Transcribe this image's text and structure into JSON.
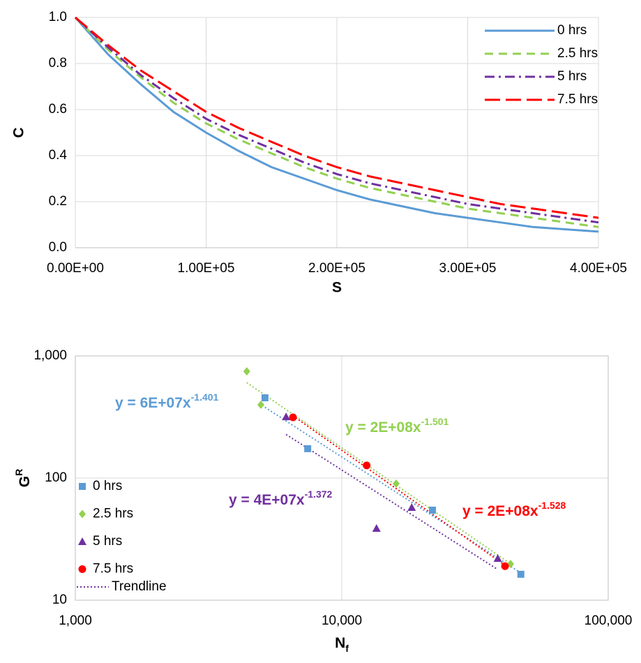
{
  "chart_data": [
    {
      "type": "line",
      "x_label": "S",
      "y_label": "C",
      "x": [
        0,
        25000,
        50000,
        75000,
        100000,
        125000,
        150000,
        175000,
        200000,
        225000,
        250000,
        275000,
        300000,
        325000,
        350000,
        375000,
        400000
      ],
      "series": [
        {
          "name": "0 hrs",
          "color": "#5b9bd5",
          "line_style": "solid",
          "values": [
            1,
            0.84,
            0.71,
            0.59,
            0.5,
            0.42,
            0.35,
            0.3,
            0.25,
            0.21,
            0.18,
            0.15,
            0.13,
            0.11,
            0.09,
            0.08,
            0.07
          ]
        },
        {
          "name": "2.5 hrs",
          "color": "#92d050",
          "line_style": "dashed",
          "values": [
            1,
            0.86,
            0.74,
            0.63,
            0.54,
            0.47,
            0.41,
            0.35,
            0.3,
            0.26,
            0.23,
            0.2,
            0.17,
            0.15,
            0.13,
            0.11,
            0.09
          ]
        },
        {
          "name": "5 hrs",
          "color": "#7030a0",
          "line_style": "dash-dot",
          "values": [
            1,
            0.87,
            0.75,
            0.65,
            0.56,
            0.49,
            0.43,
            0.37,
            0.32,
            0.28,
            0.25,
            0.22,
            0.19,
            0.17,
            0.15,
            0.13,
            0.11
          ]
        },
        {
          "name": "7.5 hrs",
          "color": "#ff0000",
          "line_style": "long-dash",
          "values": [
            1,
            0.88,
            0.77,
            0.68,
            0.59,
            0.52,
            0.46,
            0.4,
            0.35,
            0.31,
            0.28,
            0.25,
            0.22,
            0.19,
            0.17,
            0.15,
            0.13
          ]
        }
      ],
      "xlim": [
        0,
        400000
      ],
      "xticks": [
        {
          "value": 0,
          "label": "0.00E+00"
        },
        {
          "value": 100000,
          "label": "1.00E+05"
        },
        {
          "value": 200000,
          "label": "2.00E+05"
        },
        {
          "value": 300000,
          "label": "3.00E+05"
        },
        {
          "value": 400000,
          "label": "4.00E+05"
        }
      ],
      "ylim": [
        0,
        1
      ],
      "yticks": [
        {
          "value": 0,
          "label": "0.0"
        },
        {
          "value": 0.2,
          "label": "0.2"
        },
        {
          "value": 0.4,
          "label": "0.4"
        },
        {
          "value": 0.6,
          "label": "0.6"
        },
        {
          "value": 0.8,
          "label": "0.8"
        },
        {
          "value": 1,
          "label": "1.0"
        }
      ],
      "grid": true,
      "legend": "upper right"
    },
    {
      "type": "scatter",
      "x_label": "N",
      "x_label_sub": "f",
      "y_label": "G",
      "y_label_sup": "R",
      "x_log": true,
      "y_log": true,
      "series": [
        {
          "name": "0 hrs",
          "color": "#5b9bd5",
          "marker": "square",
          "x": [
            5150,
            7450,
            21900,
            47000
          ],
          "values": [
            454,
            174,
            54.6,
            16.3
          ],
          "equation": "y = 6E+07x",
          "equation_exponent": "-1.401"
        },
        {
          "name": "2.5 hrs",
          "color": "#92d050",
          "marker": "diamond",
          "x": [
            4400,
            4970,
            16000,
            43000
          ],
          "values": [
            748,
            398,
            90,
            19.8
          ],
          "equation": "y = 2E+08x",
          "equation_exponent": "-1.501"
        },
        {
          "name": "5 hrs",
          "color": "#7030a0",
          "marker": "triangle",
          "x": [
            6180,
            13500,
            18300,
            38500
          ],
          "values": [
            318,
            38.8,
            57.5,
            22
          ],
          "equation": "y = 4E+07x",
          "equation_exponent": "-1.372"
        },
        {
          "name": "7.5 hrs",
          "color": "#ff0000",
          "marker": "circle",
          "x": [
            6560,
            12400,
            41000
          ],
          "values": [
            314,
            127,
            19
          ],
          "equation": "y = 2E+08x",
          "equation_exponent": "-1.528"
        }
      ],
      "trendline_label": "Trendline",
      "trendline_color": "#7030a0",
      "xlim": [
        1000,
        100000
      ],
      "xticks": [
        {
          "value": 1000,
          "label": "1,000"
        },
        {
          "value": 10000,
          "label": "10,000"
        },
        {
          "value": 100000,
          "label": "100,000"
        }
      ],
      "ylim": [
        10,
        1000
      ],
      "yticks": [
        10,
        100,
        {
          "value": 1000,
          "label": "1,000"
        }
      ],
      "grid": true,
      "legend": "lower left"
    }
  ]
}
